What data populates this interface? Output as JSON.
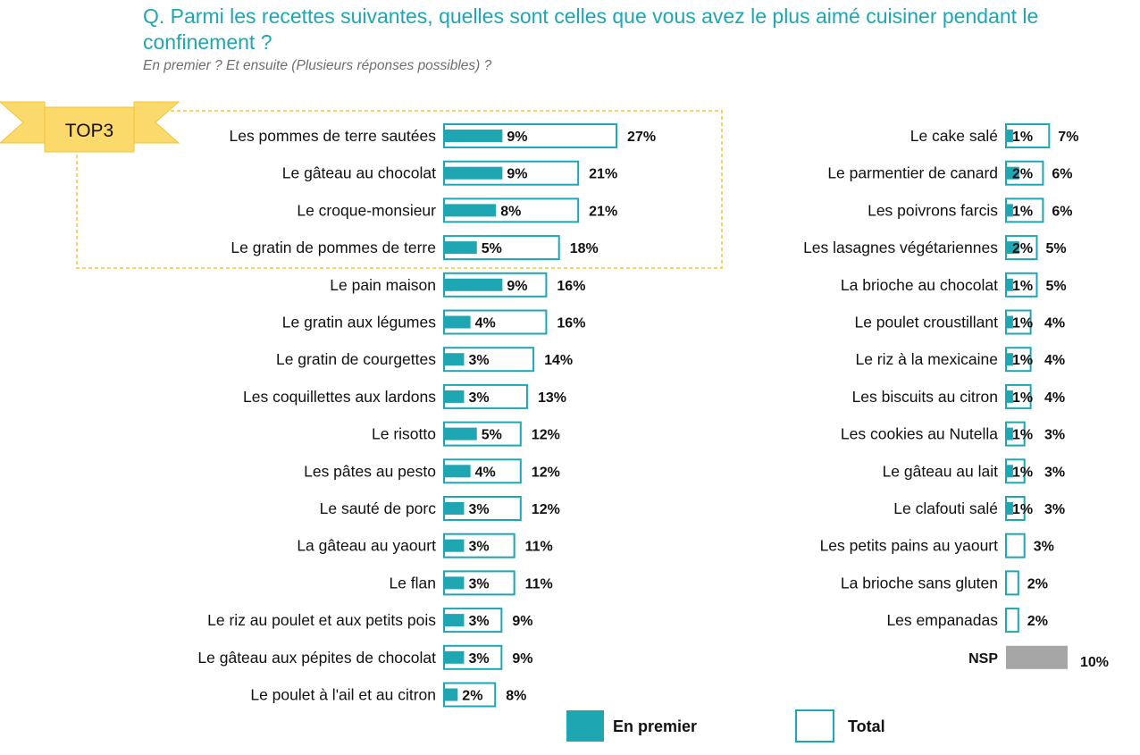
{
  "header": {
    "title": "Q. Parmi les recettes suivantes, quelles sont celles que vous avez le plus aimé cuisiner pendant le confinement ?",
    "subtitle": "En premier ? Et ensuite (Plusieurs réponses possibles) ?"
  },
  "top3_badge": "TOP3",
  "legend": {
    "first": "En premier",
    "total": "Total"
  },
  "colors": {
    "first": "#1fa6b3",
    "total_outline": "#1fa6b3",
    "nsp": "#a6a6a6",
    "badge": "#fbd96b",
    "title": "#1fa6b3",
    "top3_border": "#f0c53a"
  },
  "chart_data": [
    {
      "type": "bar",
      "orientation": "horizontal",
      "categories": [
        "Les pommes de terre sautées",
        "Le gâteau au chocolat",
        "Le croque-monsieur",
        "Le gratin de pommes de terre",
        "Le pain maison",
        "Le gratin aux légumes",
        "Le gratin de courgettes",
        "Les coquillettes aux lardons",
        "Le risotto",
        "Les pâtes au pesto",
        "Le sauté de porc",
        "La gâteau au yaourt",
        "Le flan",
        "Le riz au poulet et aux petits pois",
        "Le gâteau aux pépites de chocolat",
        "Le poulet à l'ail et au citron"
      ],
      "series": [
        {
          "name": "En premier",
          "values": [
            9,
            9,
            8,
            5,
            9,
            4,
            3,
            3,
            5,
            4,
            3,
            3,
            3,
            3,
            3,
            2
          ]
        },
        {
          "name": "Total",
          "values": [
            27,
            21,
            21,
            18,
            16,
            16,
            14,
            13,
            12,
            12,
            12,
            11,
            11,
            9,
            9,
            8
          ]
        }
      ],
      "value_labels_first": [
        "9%",
        "9%",
        "8%",
        "5%",
        "9%",
        "4%",
        "3%",
        "3%",
        "5%",
        "4%",
        "3%",
        "3%",
        "3%",
        "3%",
        "3%",
        "2%"
      ],
      "value_labels_total": [
        "27%",
        "21%",
        "21%",
        "18%",
        "16%",
        "16%",
        "14%",
        "13%",
        "12%",
        "12%",
        "12%",
        "11%",
        "11%",
        "9%",
        "9%",
        "8%"
      ],
      "highlighted_top": 4
    },
    {
      "type": "bar",
      "orientation": "horizontal",
      "categories": [
        "Le cake salé",
        "Le parmentier de canard",
        "Les poivrons farcis",
        "Les lasagnes végétariennes",
        "La brioche au chocolat",
        "Le poulet croustillant",
        "Le riz à la mexicaine",
        "Les biscuits au citron",
        "Les cookies au Nutella",
        "Le gâteau au lait",
        "Le clafouti salé",
        "Les petits pains au yaourt",
        "La brioche sans gluten",
        "Les empanadas",
        "NSP"
      ],
      "series": [
        {
          "name": "En premier",
          "values": [
            1,
            2,
            1,
            2,
            1,
            1,
            1,
            1,
            1,
            1,
            1,
            0,
            0,
            0,
            null
          ]
        },
        {
          "name": "Total",
          "values": [
            7,
            6,
            6,
            5,
            5,
            4,
            4,
            4,
            3,
            3,
            3,
            3,
            2,
            2,
            10
          ]
        }
      ],
      "value_labels_first": [
        "1%",
        "2%",
        "1%",
        "2%",
        "1%",
        "1%",
        "1%",
        "1%",
        "1%",
        "1%",
        "1%",
        "",
        "",
        "",
        ""
      ],
      "value_labels_total": [
        "7%",
        "6%",
        "6%",
        "5%",
        "5%",
        "4%",
        "4%",
        "4%",
        "3%",
        "3%",
        "3%",
        "3%",
        "2%",
        "2%",
        "10%"
      ],
      "nsp_category": "NSP"
    }
  ]
}
